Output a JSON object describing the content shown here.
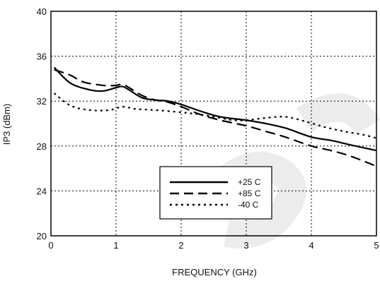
{
  "chart_data": {
    "type": "line",
    "title": "",
    "xlabel": "FREQUENCY (GHz)",
    "ylabel": "IP3 (dBm)",
    "xlim": [
      0,
      5
    ],
    "ylim": [
      20,
      40
    ],
    "x_ticks": [
      "0",
      "1",
      "2",
      "3",
      "4",
      "5"
    ],
    "y_ticks": [
      "20",
      "24",
      "28",
      "32",
      "36",
      "40"
    ],
    "grid": true,
    "legend_position": "center-bottom",
    "series": [
      {
        "name": "+25 C",
        "style": "solid",
        "color": "#000000",
        "x": [
          0.05,
          0.3,
          0.6,
          0.8,
          1.0,
          1.1,
          1.2,
          1.4,
          1.6,
          1.8,
          2.0,
          2.3,
          2.6,
          3.0,
          3.3,
          3.6,
          4.0,
          4.3,
          4.6,
          5.0
        ],
        "y": [
          35.0,
          33.6,
          33.0,
          32.9,
          33.2,
          33.3,
          33.0,
          32.3,
          32.1,
          32.0,
          31.7,
          31.1,
          30.6,
          30.3,
          30.0,
          29.6,
          28.8,
          28.5,
          28.1,
          27.6
        ]
      },
      {
        "name": "+85 C",
        "style": "dashed",
        "color": "#000000",
        "x": [
          0.05,
          0.3,
          0.5,
          0.8,
          1.0,
          1.1,
          1.2,
          1.4,
          1.6,
          1.8,
          2.0,
          2.3,
          2.6,
          3.0,
          3.3,
          3.6,
          4.0,
          4.3,
          4.6,
          5.0
        ],
        "y": [
          34.8,
          34.3,
          33.7,
          33.4,
          33.4,
          33.5,
          33.2,
          32.5,
          32.1,
          31.9,
          31.5,
          30.8,
          30.3,
          29.8,
          29.3,
          28.8,
          28.0,
          27.6,
          27.1,
          26.2
        ]
      },
      {
        "name": "-40 C",
        "style": "dotted",
        "color": "#000000",
        "x": [
          0.05,
          0.3,
          0.6,
          0.9,
          1.1,
          1.3,
          1.6,
          2.0,
          2.3,
          2.6,
          2.8,
          3.0,
          3.3,
          3.6,
          3.9,
          4.2,
          4.5,
          4.8,
          5.0
        ],
        "y": [
          32.7,
          31.6,
          31.2,
          31.2,
          31.5,
          31.3,
          31.2,
          31.0,
          30.8,
          30.5,
          30.3,
          30.3,
          30.5,
          30.6,
          30.2,
          29.7,
          29.3,
          29.0,
          28.7
        ]
      }
    ]
  }
}
